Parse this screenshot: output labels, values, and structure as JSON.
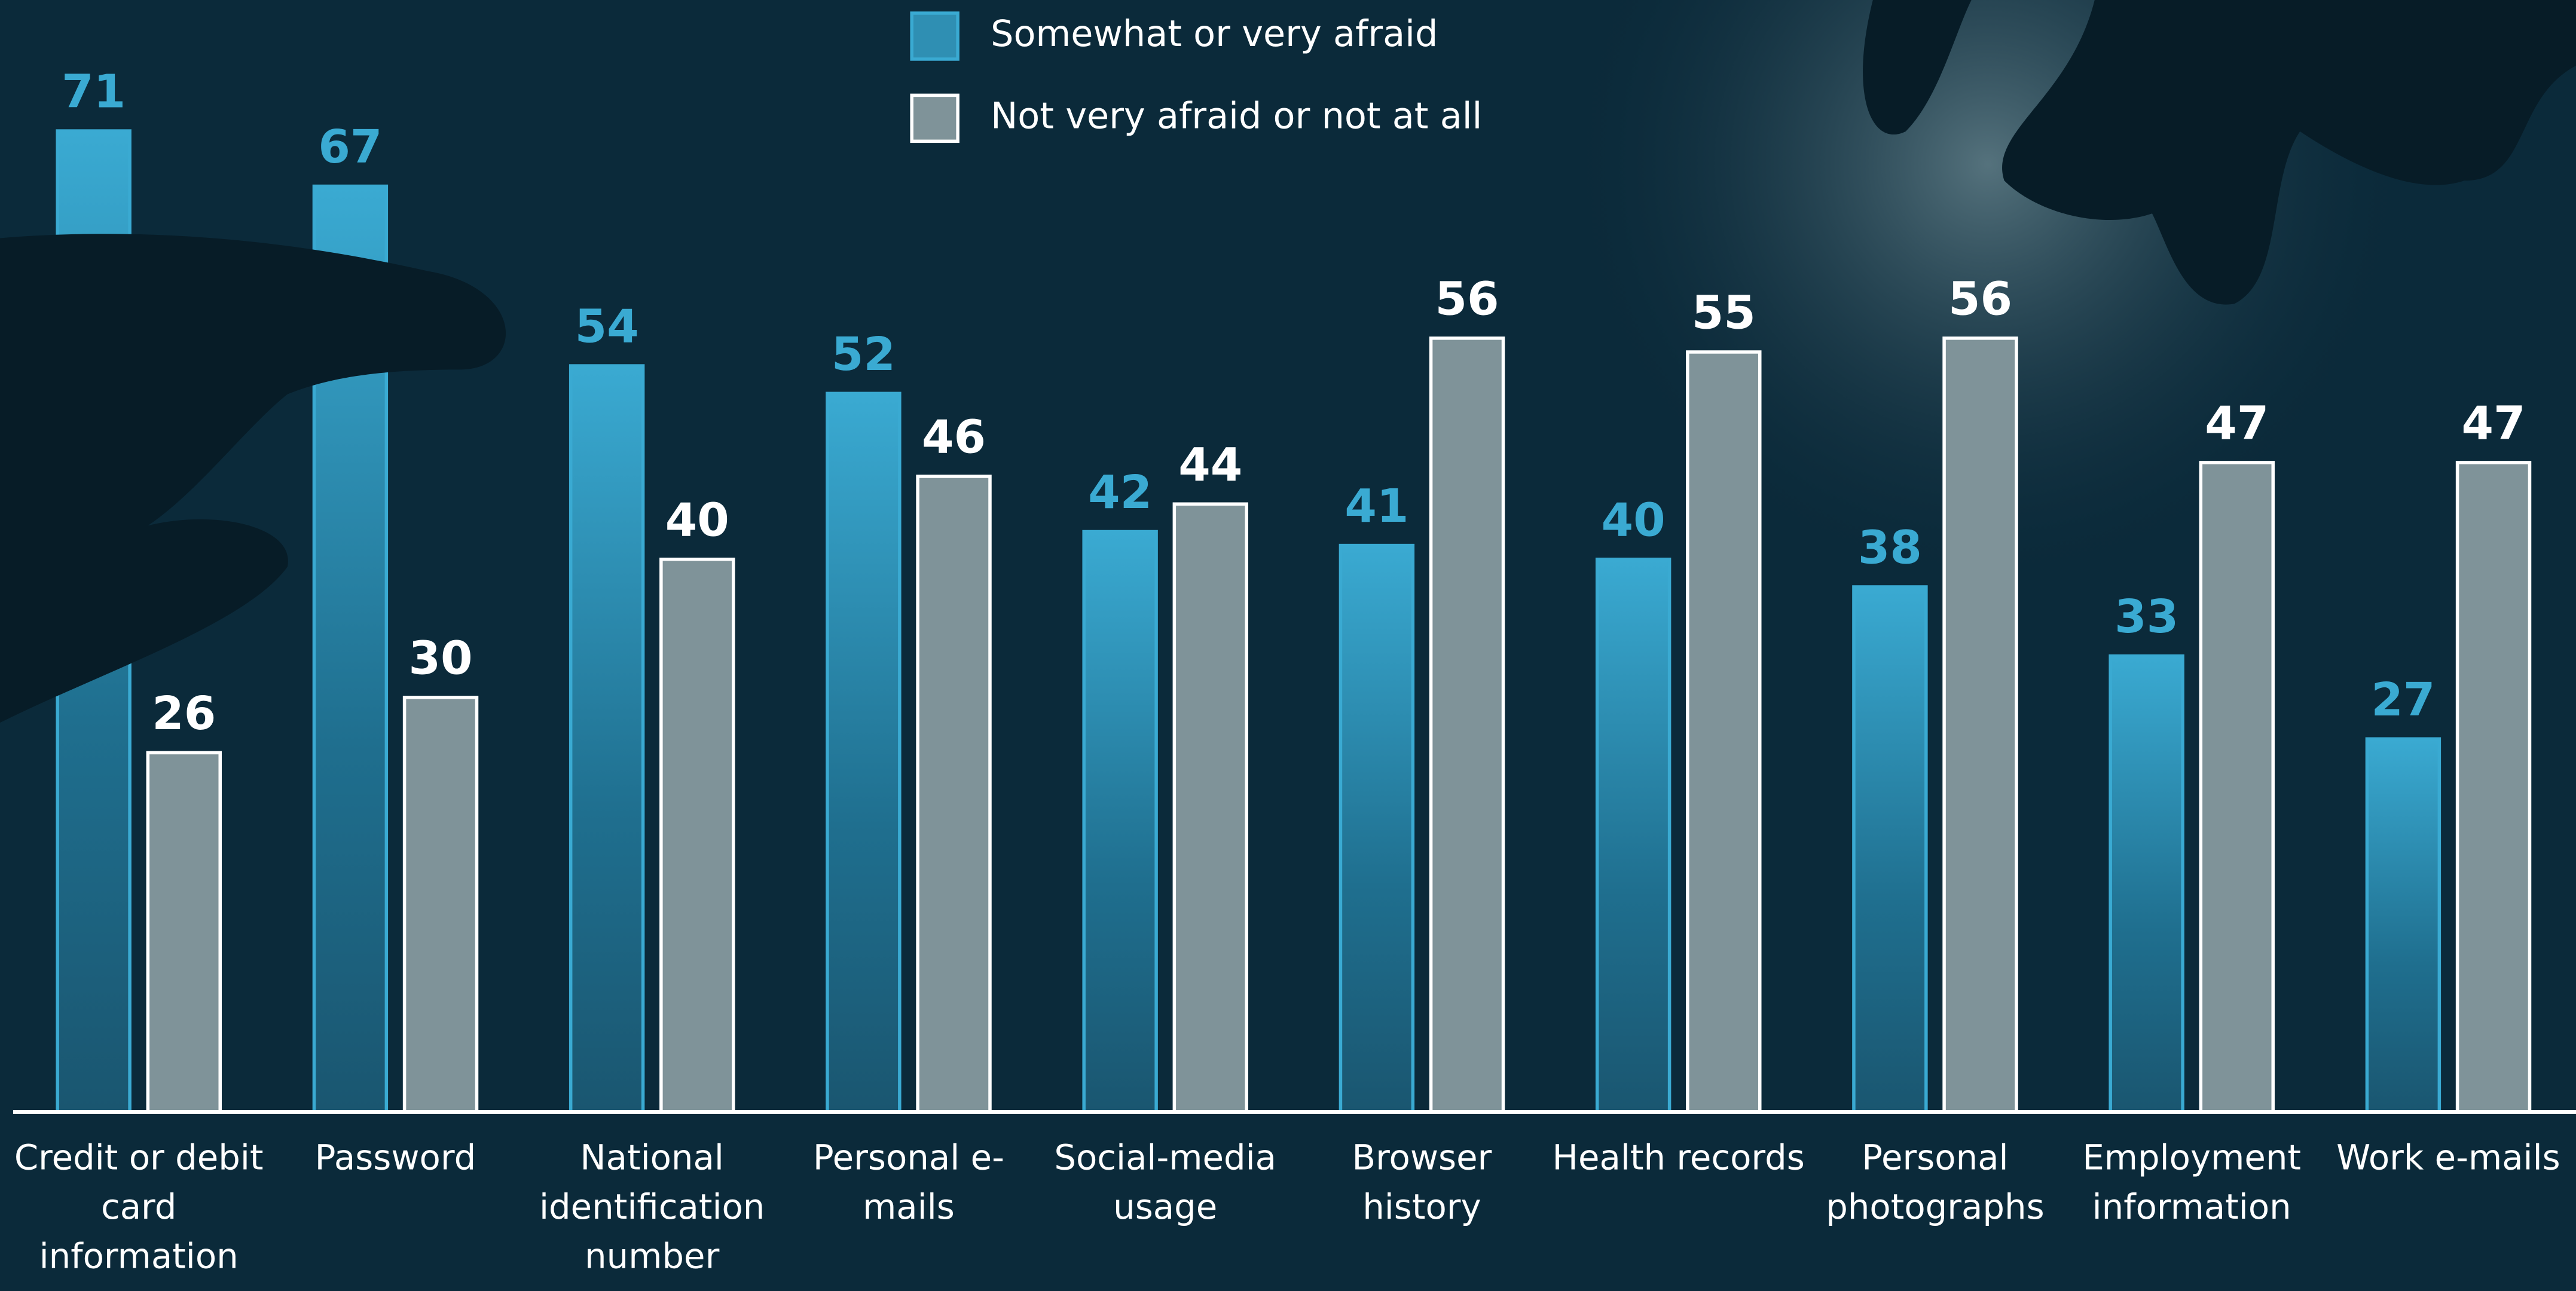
{
  "chart_data": {
    "type": "bar",
    "categories": [
      "Credit or debit card information",
      "Password",
      "National identification number",
      "Personal e-mails",
      "Social-media usage",
      "Browser history",
      "Health records",
      "Personal photographs",
      "Employment information",
      "Work e-mails"
    ],
    "series": [
      {
        "name": "Somewhat or very afraid",
        "color": "#2f8fb3",
        "values": [
          71,
          67,
          54,
          52,
          42,
          41,
          40,
          38,
          33,
          27
        ]
      },
      {
        "name": "Not very afraid or not at all",
        "color": "#7f9399",
        "values": [
          26,
          30,
          40,
          46,
          44,
          56,
          55,
          56,
          47,
          47
        ]
      }
    ],
    "ylim": [
      0,
      80
    ]
  }
}
